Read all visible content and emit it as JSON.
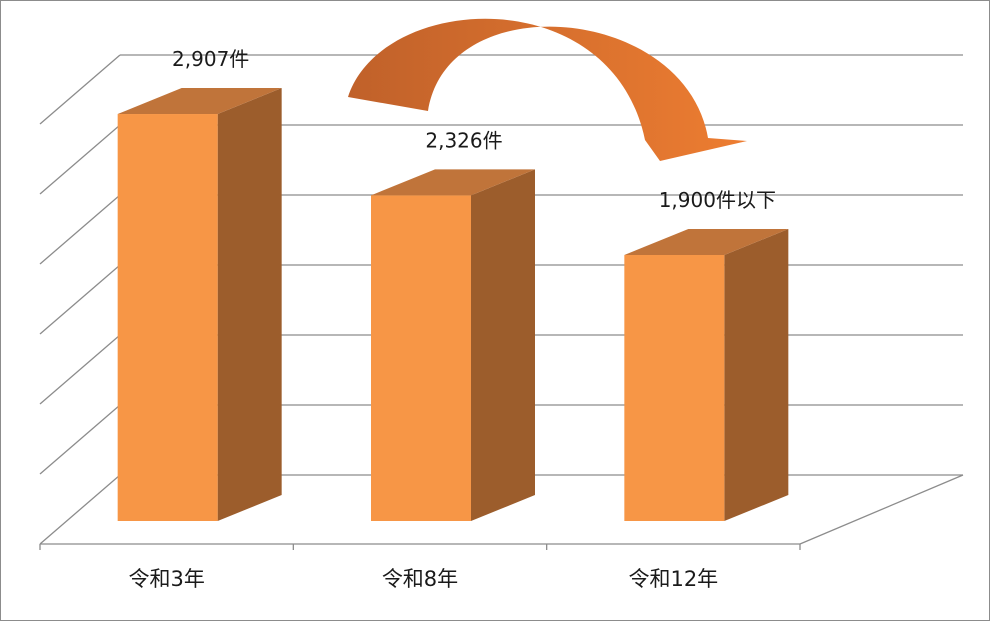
{
  "chart_data": {
    "type": "bar",
    "categories": [
      "令和3年",
      "令和8年",
      "令和12年"
    ],
    "values": [
      2907,
      2326,
      1900
    ],
    "data_labels": [
      "2,907件",
      "2,326件",
      "1,900件以下"
    ],
    "title": "",
    "xlabel": "",
    "ylabel": "",
    "ylim": [
      0,
      3000
    ],
    "grid": true,
    "legend": "none",
    "style": "3d-column",
    "colors": {
      "bar_front": "#F79646",
      "bar_side": "#9C5D2C",
      "bar_top": "#C0743A",
      "arrow_light": "#ED7D31",
      "arrow_dark": "#C0612A",
      "gridline": "#8c8c8c"
    },
    "annotations": [
      {
        "type": "curved-arrow",
        "from": "令和3年",
        "to": "令和12年"
      }
    ]
  }
}
